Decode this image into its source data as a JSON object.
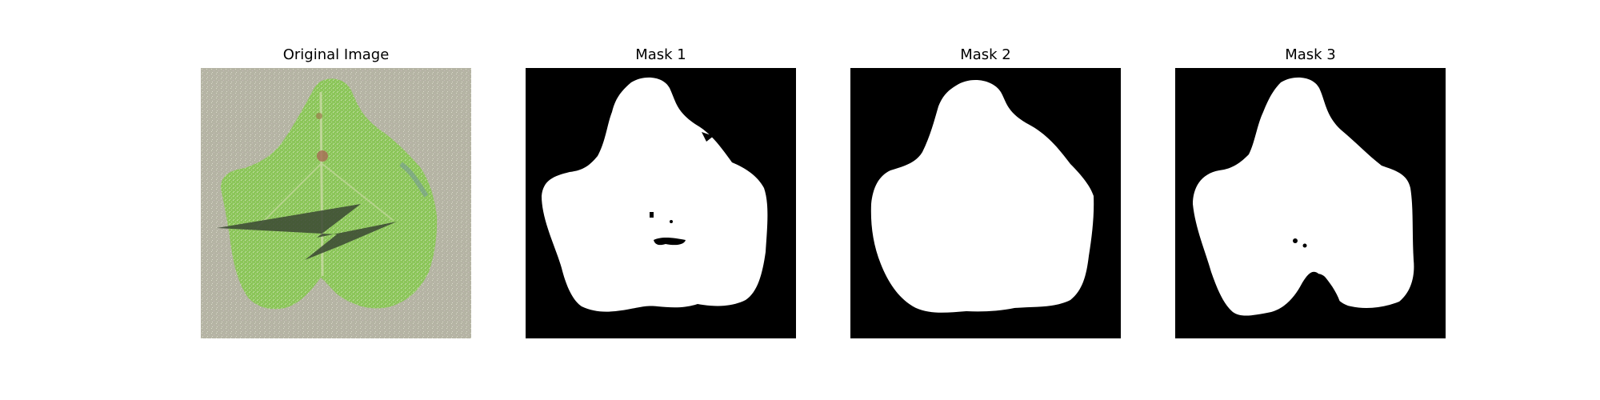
{
  "figure": {
    "panels": [
      {
        "title": "Original Image",
        "kind": "photo"
      },
      {
        "title": "Mask 1",
        "kind": "mask"
      },
      {
        "title": "Mask 2",
        "kind": "mask"
      },
      {
        "title": "Mask 3",
        "kind": "mask"
      }
    ]
  },
  "colors": {
    "background": "#ffffff",
    "mask_fg": "#ffffff",
    "mask_bg": "#000000",
    "leaf": "#8cc65a",
    "paper": "#b8b7a8",
    "shadow": "#3a4732"
  }
}
